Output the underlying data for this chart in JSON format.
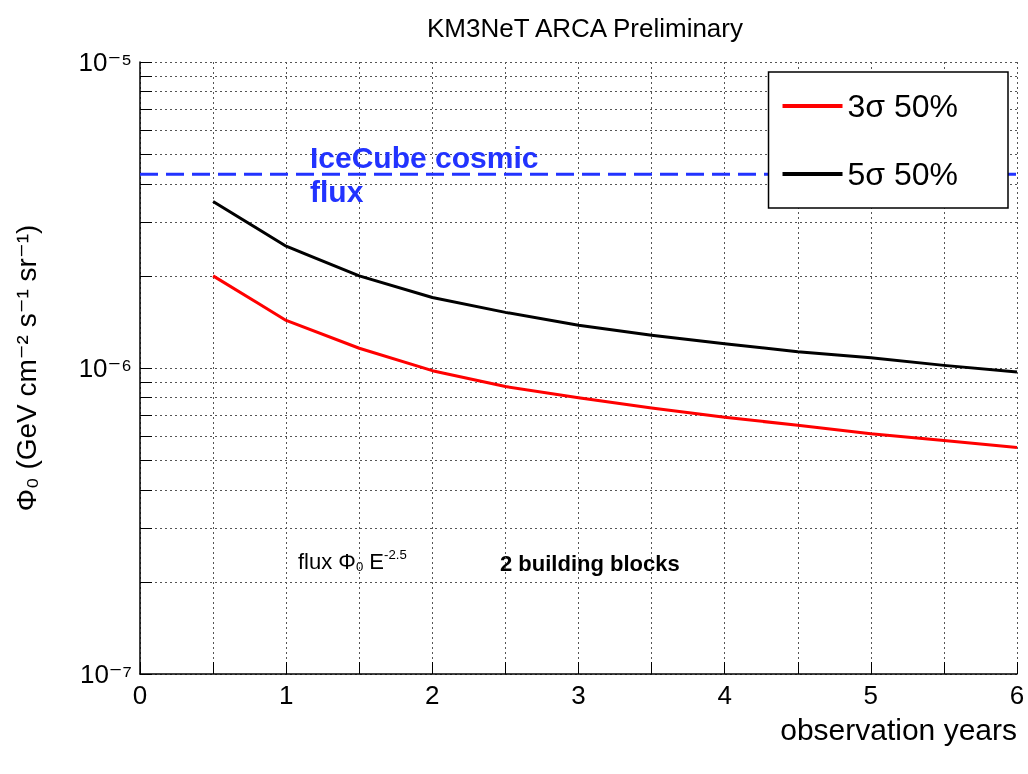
{
  "chart_data": {
    "type": "line",
    "title": "KM3NeT ARCA Preliminary",
    "xlabel": "observation years",
    "ylabel": "Φ₀ (GeV cm⁻² s⁻¹ sr⁻¹)",
    "x": [
      0.5,
      1,
      1.5,
      2,
      2.5,
      3,
      3.5,
      4,
      4.5,
      5,
      5.5,
      6
    ],
    "series": [
      {
        "name": "3σ 50%",
        "color": "#ff0000",
        "values": [
          2e-06,
          1.43e-06,
          1.16e-06,
          9.8e-07,
          8.7e-07,
          8e-07,
          7.4e-07,
          6.9e-07,
          6.5e-07,
          6.1e-07,
          5.8e-07,
          5.5e-07
        ]
      },
      {
        "name": "5σ 50%",
        "color": "#000000",
        "values": [
          3.5e-06,
          2.5e-06,
          2e-06,
          1.7e-06,
          1.52e-06,
          1.38e-06,
          1.28e-06,
          1.2e-06,
          1.13e-06,
          1.08e-06,
          1.02e-06,
          9.7e-07
        ]
      }
    ],
    "log": "y",
    "xlim": [
      0,
      6
    ],
    "ylim": [
      1e-07,
      1e-05
    ],
    "xticks": [
      0,
      {
        "value": 0.5,
        "label": null
      },
      1,
      {
        "value": 1.5,
        "label": null
      },
      2,
      {
        "value": 2.5,
        "label": null
      },
      3,
      {
        "value": 3.5,
        "label": null
      },
      4,
      {
        "value": 4.5,
        "label": null
      },
      5,
      {
        "value": 5.5,
        "label": null
      },
      6
    ],
    "yticks": [
      {
        "value": 1e-07,
        "label": "10⁻⁷"
      },
      {
        "value": 2e-07,
        "label": null
      },
      {
        "value": 3e-07,
        "label": null
      },
      {
        "value": 4e-07,
        "label": null
      },
      {
        "value": 5e-07,
        "label": null
      },
      {
        "value": 6e-07,
        "label": null
      },
      {
        "value": 7e-07,
        "label": null
      },
      {
        "value": 8e-07,
        "label": null
      },
      {
        "value": 9e-07,
        "label": null
      },
      {
        "value": 1e-06,
        "label": "10⁻⁶"
      },
      {
        "value": 2e-06,
        "label": null
      },
      {
        "value": 3e-06,
        "label": null
      },
      {
        "value": 4e-06,
        "label": null
      },
      {
        "value": 5e-06,
        "label": null
      },
      {
        "value": 6e-06,
        "label": null
      },
      {
        "value": 7e-06,
        "label": null
      },
      {
        "value": 8e-06,
        "label": null
      },
      {
        "value": 9e-06,
        "label": null
      },
      {
        "value": 1e-05,
        "label": "10⁻⁵"
      }
    ],
    "grid": true,
    "legend": "top right",
    "marker": "none",
    "line_style": "solid",
    "ref_lines": [
      {
        "axis": "y",
        "value": 4.3e-06,
        "label": "IceCube cosmic flux",
        "color": "#2233ff",
        "line_style": "dashed"
      }
    ],
    "annotations": [
      "flux Φ$_{0}$ E$^{-2.5}$",
      "2 building blocks"
    ]
  }
}
